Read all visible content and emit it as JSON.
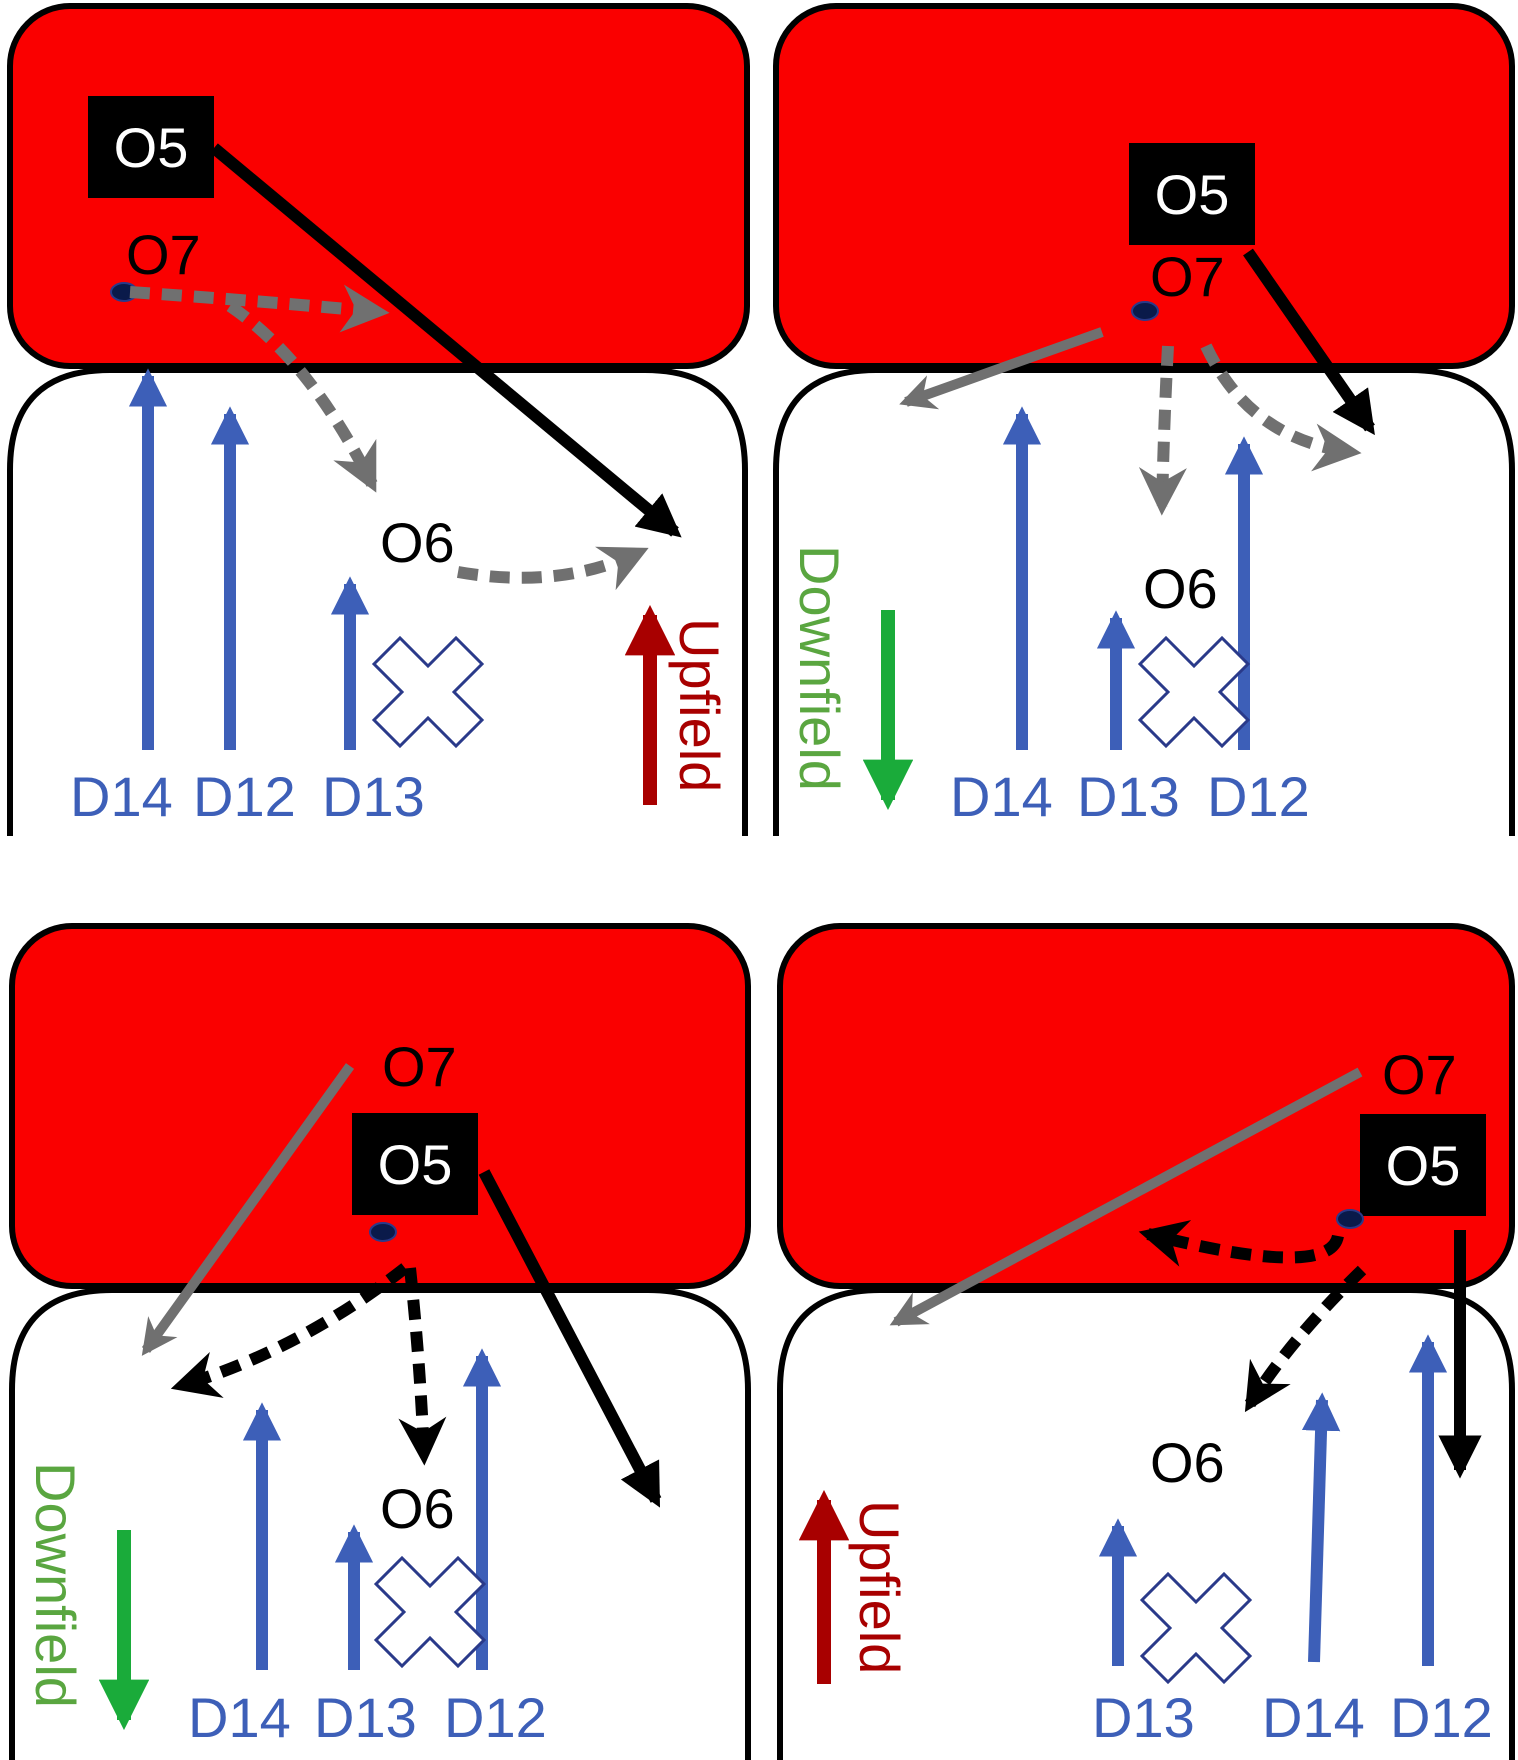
{
  "colors": {
    "red_zone": "#fa0000",
    "outline": "#000000",
    "blue_arrow": "#3d5fb8",
    "blue_label": "#3d5fb8",
    "gray_arrow": "#707070",
    "black_arrow": "#000000",
    "upfield": "#a80000",
    "downfield_label": "#5aa640",
    "downfield_arrow": "#1aab3a"
  },
  "panels": [
    {
      "o5": "O5",
      "o7": "O7",
      "o6": "O6",
      "d_labels": [
        "D14",
        "D12",
        "D13"
      ],
      "direction": "Upfield"
    },
    {
      "o5": "O5",
      "o7": "O7",
      "o6": "O6",
      "d_labels": [
        "D14",
        "D13",
        "D12"
      ],
      "direction": "Downfield"
    },
    {
      "o5": "O5",
      "o7": "O7",
      "o6": "O6",
      "d_labels": [
        "D14",
        "D13",
        "D12"
      ],
      "direction": "Downfield"
    },
    {
      "o5": "O5",
      "o7": "O7",
      "o6": "O6",
      "d_labels": [
        "D13",
        "D14",
        "D12"
      ],
      "direction": "Upfield"
    }
  ]
}
